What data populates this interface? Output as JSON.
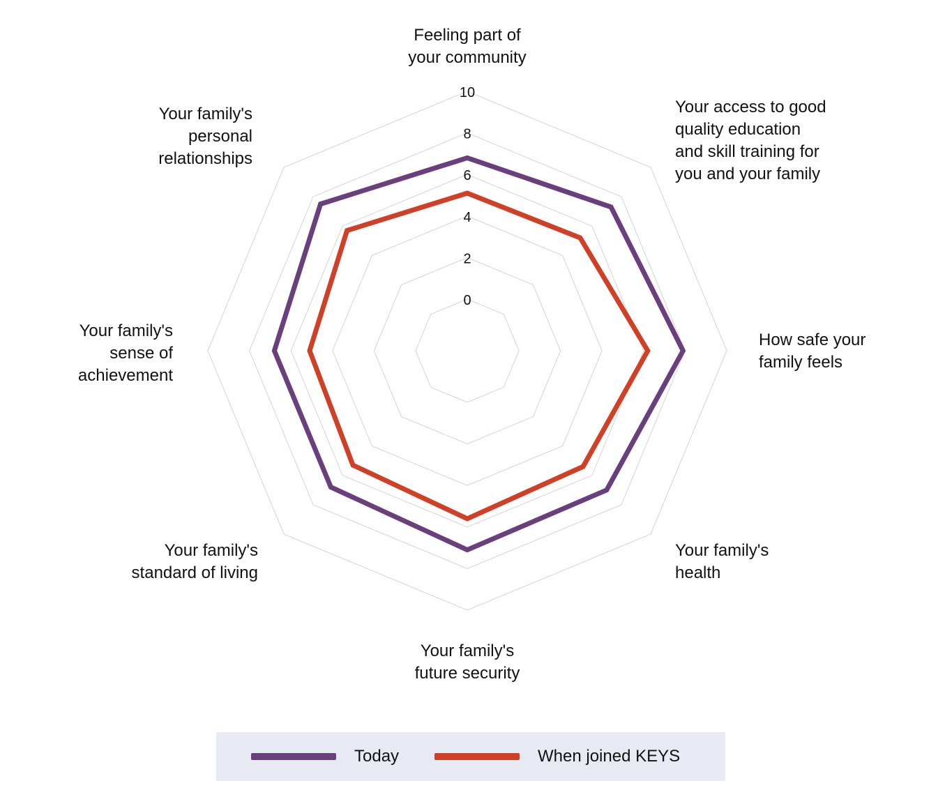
{
  "chart_data": {
    "type": "radar",
    "categories": [
      "Feeling part of\nyour community",
      "Your access to good\nquality education\nand skill training for\nyou and your family",
      "How safe your\nfamily feels",
      "Your family's\nhealth",
      "Your family's\nfuture security",
      "Your family's\nstandard of living",
      "Your family's\nsense of\nachievement",
      "Your family's\npersonal\nrelationships"
    ],
    "series": [
      {
        "name": "Today",
        "color": "#6a3f7d",
        "values": [
          6.8,
          7.3,
          7.9,
          7.0,
          7.1,
          6.8,
          6.8,
          7.5
        ]
      },
      {
        "name": "When joined KEYS",
        "color": "#cf4027",
        "values": [
          5.1,
          5.2,
          6.2,
          5.4,
          5.6,
          5.3,
          5.1,
          5.7
        ]
      }
    ],
    "rlim": [
      0,
      10
    ],
    "ticks": [
      "0",
      "2",
      "4",
      "6",
      "8",
      "10"
    ],
    "grid_color": "#d4d4d4",
    "legend_position": "bottom"
  }
}
